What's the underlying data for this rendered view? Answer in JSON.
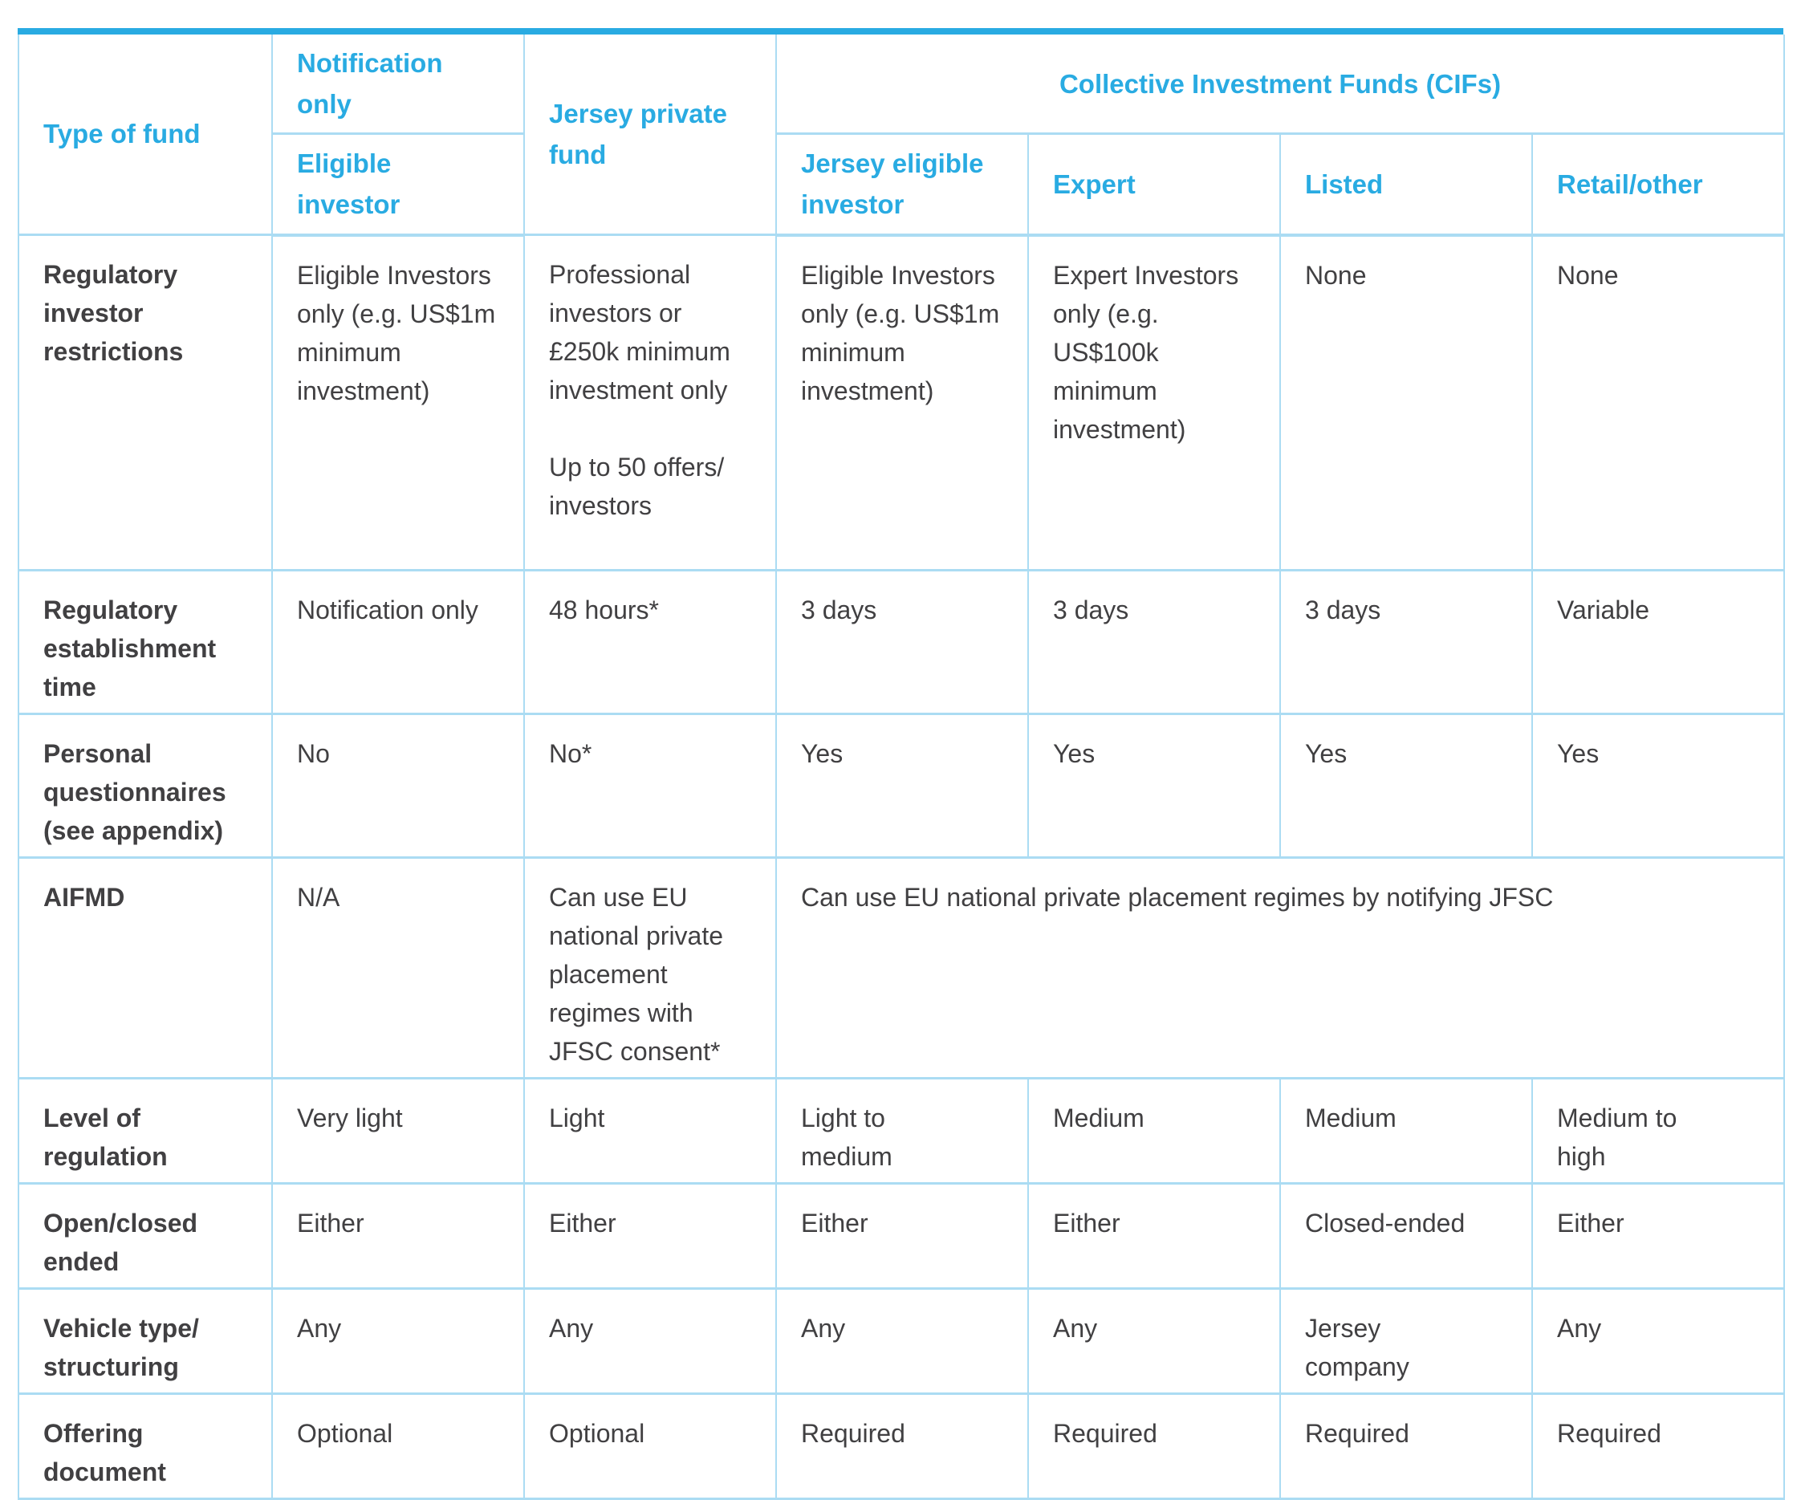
{
  "colors": {
    "accent_cyan": "#29ABE2",
    "grid_light_blue": "#ABDCF3",
    "body_text": "#414042",
    "background": "#ffffff"
  },
  "table": {
    "header": {
      "type_of_fund": "Type of fund",
      "notification_only": "Notification only",
      "eligible_investor": "Eligible investor",
      "jersey_private_fund": "Jersey private fund",
      "cifs_group": "Collective Investment Funds (CIFs)",
      "jersey_eligible_investor": "Jersey eligible investor",
      "expert": "Expert",
      "listed": "Listed",
      "retail_other": "Retail/other"
    },
    "rows": [
      {
        "label": "Regulatory investor restrictions",
        "cells": [
          "Eligible Investors only (e.g. US$1m minimum investment)",
          "Professional investors or £250k minimum investment only\n\nUp to 50 offers/ investors",
          "Eligible Investors only (e.g. US$1m minimum investment)",
          "Expert Investors only (e.g. US$100k minimum investment)",
          "None",
          "None"
        ]
      },
      {
        "label": "Regulatory establishment time",
        "cells": [
          "Notification only",
          "48 hours*",
          "3 days",
          "3 days",
          "3 days",
          "Variable"
        ]
      },
      {
        "label": "Personal questionnaires (see appendix)",
        "cells": [
          "No",
          "No*",
          "Yes",
          "Yes",
          "Yes",
          "Yes"
        ]
      },
      {
        "label": "AIFMD",
        "cells": [
          "N/A",
          "Can use EU national private placement regimes with JFSC consent*",
          "Can use EU national private placement regimes by notifying JFSC"
        ]
      },
      {
        "label": "Level of regulation",
        "cells": [
          "Very light",
          "Light",
          "Light to\nmedium",
          "Medium",
          "Medium",
          "Medium to\nhigh"
        ]
      },
      {
        "label": "Open/closed ended",
        "cells": [
          "Either",
          "Either",
          "Either",
          "Either",
          "Closed-ended",
          "Either"
        ]
      },
      {
        "label": "Vehicle type/ structuring",
        "cells": [
          "Any",
          "Any",
          "Any",
          "Any",
          "Jersey\ncompany",
          "Any"
        ]
      },
      {
        "label": "Offering document",
        "cells": [
          "Optional",
          "Optional",
          "Required",
          "Required",
          "Required",
          "Required"
        ]
      }
    ]
  }
}
